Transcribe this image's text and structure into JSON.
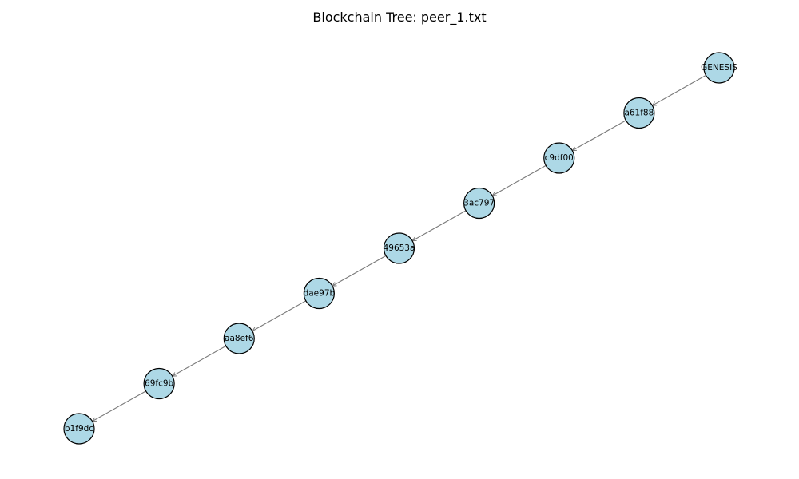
{
  "figure": {
    "title": "Blockchain Tree: peer_1.txt"
  },
  "graph": {
    "node_fill": "#add8e6",
    "node_stroke": "#000000",
    "edge_color": "#7a7a7a",
    "nodes": [
      {
        "id": "GENESIS",
        "label": "GENESIS"
      },
      {
        "id": "a61f88",
        "label": "a61f88"
      },
      {
        "id": "c9df00",
        "label": "c9df00"
      },
      {
        "id": "3ac797",
        "label": "3ac797"
      },
      {
        "id": "49653a",
        "label": "49653a"
      },
      {
        "id": "dae97b",
        "label": "dae97b"
      },
      {
        "id": "aa8ef6",
        "label": "aa8ef6"
      },
      {
        "id": "69fc9b",
        "label": "69fc9b"
      },
      {
        "id": "b1f9dc",
        "label": "b1f9dc"
      }
    ],
    "edges": [
      {
        "from": "GENESIS",
        "to": "a61f88"
      },
      {
        "from": "a61f88",
        "to": "c9df00"
      },
      {
        "from": "c9df00",
        "to": "3ac797"
      },
      {
        "from": "3ac797",
        "to": "49653a"
      },
      {
        "from": "49653a",
        "to": "dae97b"
      },
      {
        "from": "dae97b",
        "to": "aa8ef6"
      },
      {
        "from": "aa8ef6",
        "to": "69fc9b"
      },
      {
        "from": "69fc9b",
        "to": "b1f9dc"
      }
    ]
  }
}
